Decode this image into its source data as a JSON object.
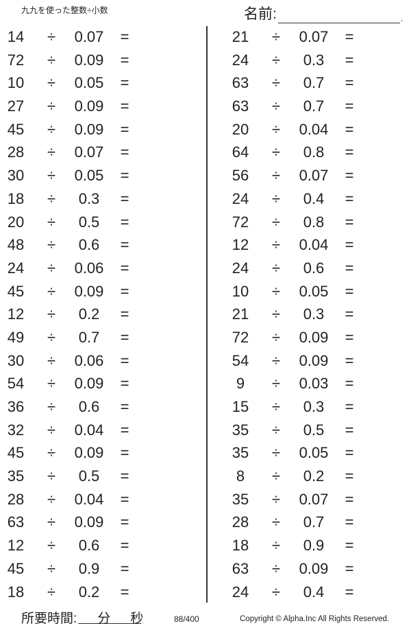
{
  "header": {
    "title": "九九を使った整数÷小数",
    "name_label": "名前:",
    "name_end": "."
  },
  "operator": "÷",
  "equals": "=",
  "left": [
    [
      "14",
      "0.07"
    ],
    [
      "72",
      "0.09"
    ],
    [
      "10",
      "0.05"
    ],
    [
      "27",
      "0.09"
    ],
    [
      "45",
      "0.09"
    ],
    [
      "28",
      "0.07"
    ],
    [
      "30",
      "0.05"
    ],
    [
      "18",
      "0.3"
    ],
    [
      "20",
      "0.5"
    ],
    [
      "48",
      "0.6"
    ],
    [
      "24",
      "0.06"
    ],
    [
      "45",
      "0.09"
    ],
    [
      "12",
      "0.2"
    ],
    [
      "49",
      "0.7"
    ],
    [
      "30",
      "0.06"
    ],
    [
      "54",
      "0.09"
    ],
    [
      "36",
      "0.6"
    ],
    [
      "32",
      "0.04"
    ],
    [
      "45",
      "0.09"
    ],
    [
      "35",
      "0.5"
    ],
    [
      "28",
      "0.04"
    ],
    [
      "63",
      "0.09"
    ],
    [
      "12",
      "0.6"
    ],
    [
      "45",
      "0.9"
    ],
    [
      "18",
      "0.2"
    ]
  ],
  "right": [
    [
      "21",
      "0.07"
    ],
    [
      "24",
      "0.3"
    ],
    [
      "63",
      "0.7"
    ],
    [
      "63",
      "0.7"
    ],
    [
      "20",
      "0.04"
    ],
    [
      "64",
      "0.8"
    ],
    [
      "56",
      "0.07"
    ],
    [
      "24",
      "0.4"
    ],
    [
      "72",
      "0.8"
    ],
    [
      "12",
      "0.04"
    ],
    [
      "24",
      "0.6"
    ],
    [
      "10",
      "0.05"
    ],
    [
      "21",
      "0.3"
    ],
    [
      "72",
      "0.09"
    ],
    [
      "54",
      "0.09"
    ],
    [
      "9",
      "0.03"
    ],
    [
      "15",
      "0.3"
    ],
    [
      "35",
      "0.5"
    ],
    [
      "35",
      "0.05"
    ],
    [
      "8",
      "0.2"
    ],
    [
      "35",
      "0.07"
    ],
    [
      "28",
      "0.7"
    ],
    [
      "18",
      "0.9"
    ],
    [
      "63",
      "0.09"
    ],
    [
      "24",
      "0.4"
    ]
  ],
  "footer": {
    "time_label": "所要時間:",
    "minutes": "分",
    "seconds": "秒",
    "page": "88/400",
    "copyright": "Copyright © Alpha.Inc All Rights Reserved."
  }
}
